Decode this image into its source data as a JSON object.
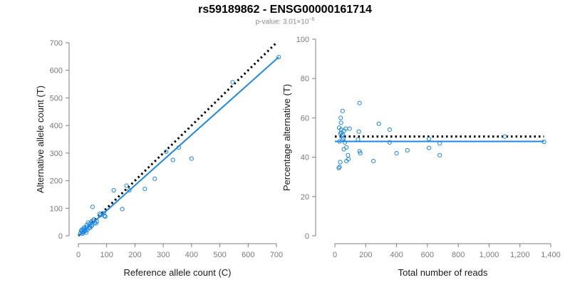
{
  "header": {
    "title": "rs59189862 - ENSG00000161714",
    "pvalue_base": "p-value: 3.01×10",
    "pvalue_exp": "−6"
  },
  "colors": {
    "points": "#1e88e5",
    "fit_line": "#1e88e5",
    "reference_line": "#000000",
    "axis": "#7f7f7f"
  },
  "chart_data": [
    {
      "type": "scatter",
      "xlabel": "Reference allele count (C)",
      "ylabel": "Alternative allele count (T)",
      "xlim": [
        0,
        700
      ],
      "ylim": [
        0,
        700
      ],
      "xticks": [
        0,
        100,
        200,
        300,
        400,
        500,
        600,
        700
      ],
      "yticks": [
        0,
        100,
        200,
        300,
        400,
        500,
        600,
        700
      ],
      "xticklabels": [
        "0",
        "100",
        "200",
        "300",
        "400",
        "500",
        "600",
        "700"
      ],
      "yticklabels": [
        "0",
        "100",
        "200",
        "300",
        "400",
        "500",
        "600",
        "700"
      ],
      "grid": false,
      "points": [
        [
          708,
          648
        ],
        [
          545,
          557
        ],
        [
          355,
          320
        ],
        [
          310,
          305
        ],
        [
          334,
          275
        ],
        [
          400,
          280
        ],
        [
          270,
          207
        ],
        [
          235,
          170
        ],
        [
          180,
          165
        ],
        [
          170,
          182
        ],
        [
          125,
          165
        ],
        [
          155,
          97
        ],
        [
          50,
          105
        ],
        [
          75,
          80
        ],
        [
          90,
          82
        ],
        [
          92,
          72
        ],
        [
          78,
          75
        ],
        [
          95,
          70
        ],
        [
          65,
          52
        ],
        [
          55,
          60
        ],
        [
          50,
          55
        ],
        [
          45,
          50
        ],
        [
          40,
          42
        ],
        [
          35,
          48
        ],
        [
          30,
          40
        ],
        [
          48,
          38
        ],
        [
          42,
          30
        ],
        [
          38,
          28
        ],
        [
          30,
          32
        ],
        [
          25,
          28
        ],
        [
          22,
          20
        ],
        [
          18,
          25
        ],
        [
          15,
          15
        ],
        [
          12,
          22
        ],
        [
          18,
          12
        ],
        [
          25,
          18
        ],
        [
          28,
          12
        ],
        [
          20,
          30
        ],
        [
          8,
          10
        ],
        [
          10,
          18
        ],
        [
          14,
          8
        ],
        [
          32,
          22
        ],
        [
          58,
          48
        ],
        [
          62,
          45
        ],
        [
          45,
          35
        ]
      ],
      "fit_line": [
        [
          0,
          0
        ],
        [
          708,
          648
        ]
      ],
      "reference_line": [
        [
          0,
          0
        ],
        [
          700,
          700
        ]
      ]
    },
    {
      "type": "scatter",
      "xlabel": "Total number of reads",
      "ylabel": "Percentage alternative (T)",
      "xlim": [
        0,
        1400
      ],
      "ylim": [
        0,
        100
      ],
      "xticks": [
        0,
        200,
        400,
        600,
        800,
        1000,
        1200,
        1400
      ],
      "yticks": [
        0,
        20,
        40,
        60,
        80,
        100
      ],
      "xticklabels": [
        "0",
        "200",
        "400",
        "600",
        "800",
        "1,000",
        "1,200",
        "1,400"
      ],
      "yticklabels": [
        "0",
        "20",
        "40",
        "60",
        "80",
        "100"
      ],
      "grid": false,
      "points": [
        [
          1356,
          47.8
        ],
        [
          1102,
          50.5
        ],
        [
          680,
          41
        ],
        [
          680,
          47
        ],
        [
          610,
          44.7
        ],
        [
          610,
          49.3
        ],
        [
          470,
          43.5
        ],
        [
          400,
          42
        ],
        [
          355,
          54
        ],
        [
          355,
          47.5
        ],
        [
          285,
          57
        ],
        [
          250,
          38
        ],
        [
          160,
          67.5
        ],
        [
          155,
          53
        ],
        [
          160,
          43
        ],
        [
          165,
          42
        ],
        [
          150,
          49
        ],
        [
          95,
          54.5
        ],
        [
          85,
          41
        ],
        [
          70,
          54.5
        ],
        [
          75,
          45
        ],
        [
          75,
          38
        ],
        [
          60,
          53.5
        ],
        [
          55,
          49.5
        ],
        [
          50,
          63.5
        ],
        [
          45,
          51
        ],
        [
          40,
          57.5
        ],
        [
          40,
          54
        ],
        [
          35,
          52
        ],
        [
          30,
          48
        ],
        [
          35,
          37.5
        ],
        [
          30,
          35
        ],
        [
          25,
          34.5
        ],
        [
          28,
          55
        ],
        [
          38,
          60
        ],
        [
          42,
          52.5
        ],
        [
          48,
          49
        ],
        [
          52,
          51.5
        ],
        [
          58,
          44
        ],
        [
          65,
          47.5
        ],
        [
          88,
          39
        ]
      ],
      "fit_line": [
        [
          0,
          48
        ],
        [
          1356,
          48
        ]
      ],
      "reference_line": [
        [
          0,
          50.5
        ],
        [
          1356,
          50.5
        ]
      ]
    }
  ]
}
